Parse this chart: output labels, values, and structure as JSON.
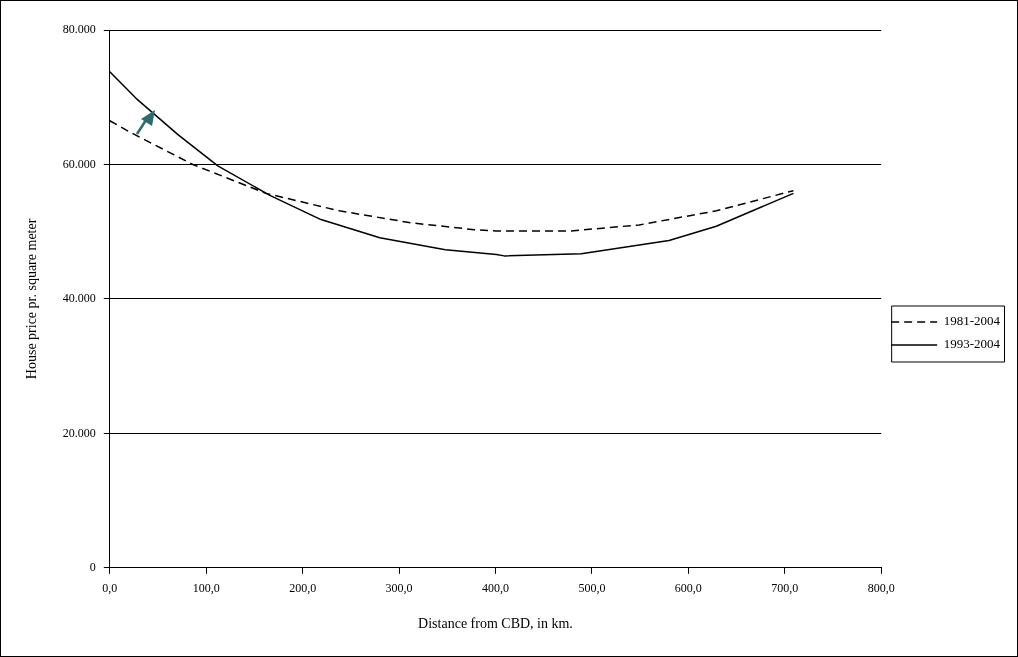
{
  "chart_data": {
    "type": "line",
    "xlabel": "Distance from CBD, in km.",
    "ylabel": "House price pr. square meter",
    "xlim": [
      0,
      800
    ],
    "xticks": [
      {
        "value": 0,
        "label": "0,0"
      },
      {
        "value": 100,
        "label": "100,0"
      },
      {
        "value": 200,
        "label": "200,0"
      },
      {
        "value": 300,
        "label": "300,0"
      },
      {
        "value": 400,
        "label": "400,0"
      },
      {
        "value": 500,
        "label": "500,0"
      },
      {
        "value": 600,
        "label": "600,0"
      },
      {
        "value": 700,
        "label": "700,0"
      },
      {
        "value": 800,
        "label": "800,0"
      }
    ],
    "ylim": [
      0,
      80000
    ],
    "yticks": [
      0,
      {
        "value": 20000,
        "label": "20.000"
      },
      {
        "value": 40000,
        "label": "40.000"
      },
      {
        "value": 60000,
        "label": "60.000"
      },
      {
        "value": 80000,
        "label": "80.000"
      }
    ],
    "grid": "y",
    "legend": "right",
    "marker": "none",
    "series": [
      {
        "name": "1981-2004",
        "color": "#000000",
        "line_style": "dashed",
        "x": [
          0,
          21,
          86,
          162,
          238,
          313,
          378,
          401,
          477,
          549,
          629,
          709
        ],
        "values": [
          66500,
          64800,
          60000,
          55700,
          53100,
          51300,
          50300,
          50100,
          50100,
          51000,
          53100,
          56100
        ]
      },
      {
        "name": "1993-2004",
        "color": "#000000",
        "line_style": "solid",
        "x": [
          0,
          29,
          71,
          112,
          166,
          219,
          280,
          348,
          401,
          409,
          489,
          580,
          629,
          709
        ],
        "values": [
          73800,
          69600,
          64400,
          59800,
          55400,
          51800,
          49100,
          47300,
          46600,
          46400,
          46700,
          48700,
          50800,
          55700
        ]
      }
    ]
  }
}
